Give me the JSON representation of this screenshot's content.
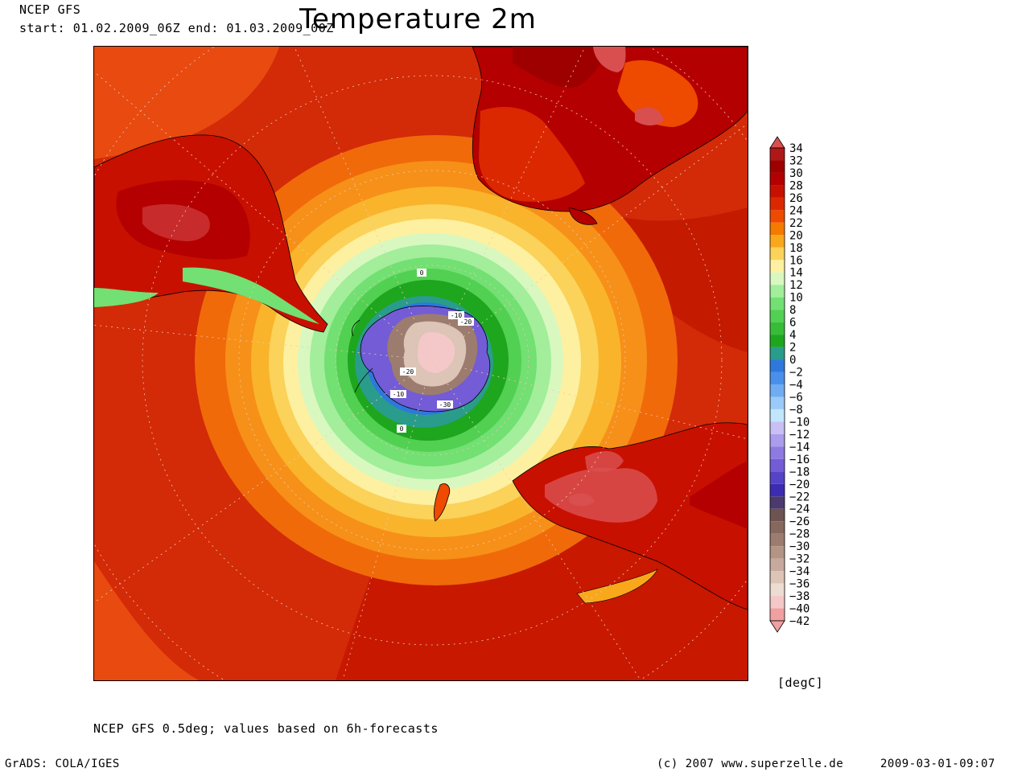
{
  "header": {
    "model": "NCEP GFS",
    "period": "start: 01.02.2009_06Z end: 01.03.2009_00Z",
    "title": "Temperature 2m"
  },
  "legend": {
    "unit": "[degC]",
    "levels": [
      34,
      32,
      30,
      28,
      26,
      24,
      22,
      20,
      18,
      16,
      14,
      12,
      10,
      8,
      6,
      4,
      2,
      0,
      -2,
      -4,
      -6,
      -8,
      -10,
      -12,
      -14,
      -16,
      -18,
      -20,
      -22,
      -24,
      -26,
      -28,
      -30,
      -32,
      -34,
      -36,
      -38,
      -40,
      -42
    ],
    "colors": [
      "#d94f4f",
      "#b01818",
      "#9e0000",
      "#b40000",
      "#c81000",
      "#dc2800",
      "#ee4a00",
      "#f57a00",
      "#f9a81c",
      "#fbd25a",
      "#fdf0a0",
      "#d8f8c0",
      "#a2ee9a",
      "#72e072",
      "#52d052",
      "#38bc38",
      "#1ea61e",
      "#2a9c8c",
      "#2e78dc",
      "#4a90ea",
      "#70acf2",
      "#9acaf8",
      "#c2e6fc",
      "#c8c0f4",
      "#ab9cec",
      "#8f7ae2",
      "#735cd6",
      "#5644c6",
      "#3c2cb2",
      "#4a3a6e",
      "#6e5450",
      "#86685c",
      "#9c7c6e",
      "#b49484",
      "#c8aa9c",
      "#dcc4b6",
      "#ecdcd2",
      "#f4c8c8",
      "#f0a0a0"
    ]
  },
  "map": {
    "contour_labels": [
      "0",
      "-10",
      "-20",
      "-20",
      "-10",
      "-30",
      "0"
    ]
  },
  "footer": {
    "note": "NCEP GFS 0.5deg; values based on 6h-forecasts",
    "grads": "GrADS: COLA/IGES",
    "copyright": "(c) 2007 www.superzelle.de",
    "timestamp": "2009-03-01-09:07"
  }
}
